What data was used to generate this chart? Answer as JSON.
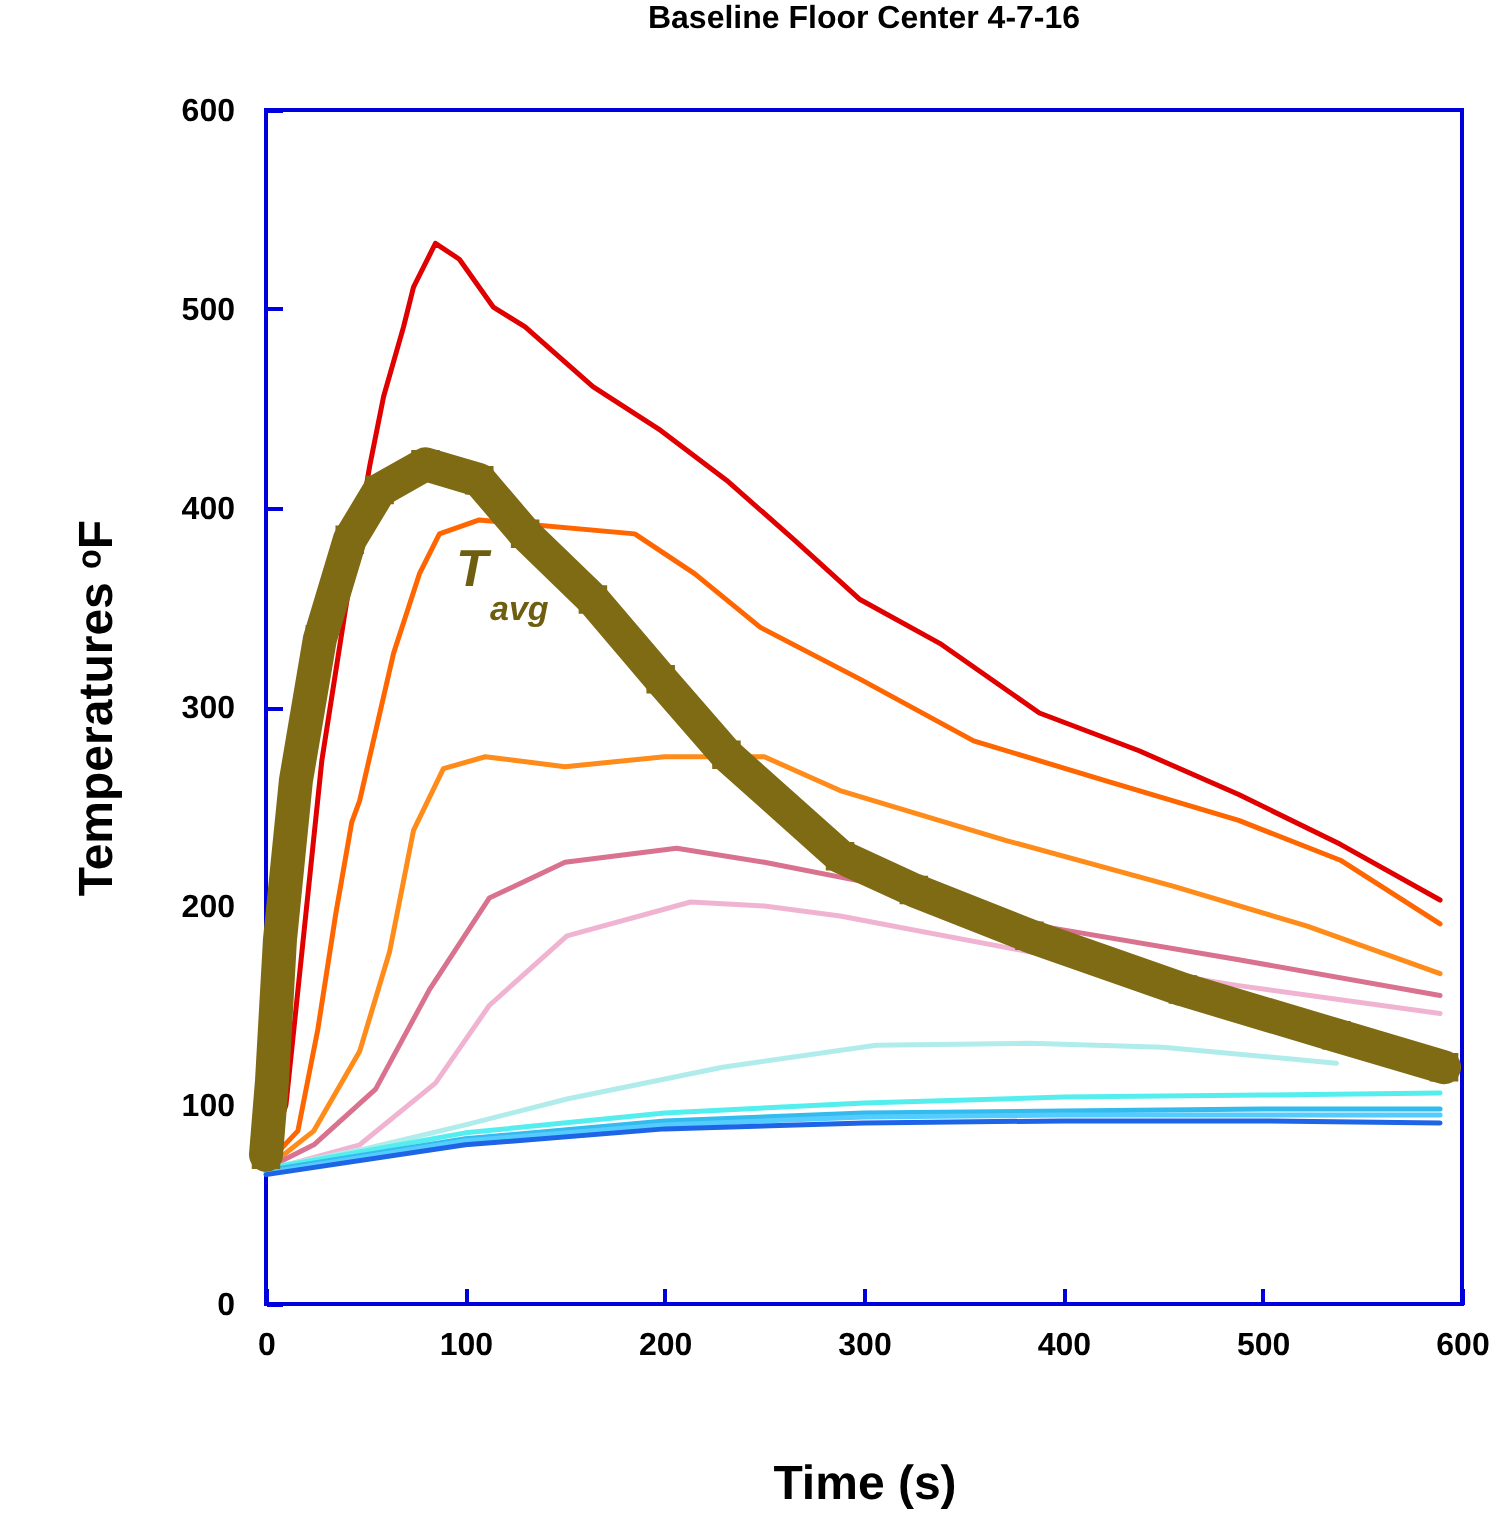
{
  "chart_data": {
    "type": "line",
    "title": "Baseline Floor Center    4-7-16",
    "xlabel": "Time (s)",
    "ylabel": "Temperatures ᵒF",
    "xlim": [
      0,
      600
    ],
    "ylim": [
      0,
      600
    ],
    "xticks": [
      0,
      100,
      200,
      300,
      400,
      500,
      600
    ],
    "yticks": [
      0,
      100,
      200,
      300,
      400,
      500,
      600
    ],
    "grid": false,
    "annotations": [
      "T$_{avg}$"
    ],
    "series": [
      {
        "color": "#e00000",
        "x": [
          0,
          10,
          20,
          28,
          40,
          52,
          59,
          69,
          74,
          85,
          97,
          114,
          130,
          164,
          198,
          231,
          265,
          298,
          338,
          388,
          438,
          488,
          539,
          589
        ],
        "values": [
          70,
          100,
          196,
          273,
          350,
          421,
          456,
          491,
          511,
          533,
          525,
          501,
          491,
          461,
          439,
          414,
          384,
          354,
          332,
          297,
          278,
          256,
          231,
          203
        ]
      },
      {
        "color": "#ff6600",
        "x": [
          0,
          16,
          26,
          35,
          43,
          47,
          64,
          77,
          87,
          107,
          185,
          215,
          248,
          298,
          355,
          421,
          488,
          539,
          589
        ],
        "values": [
          70,
          87,
          138,
          196,
          242,
          253,
          327,
          367,
          387,
          394,
          387,
          367,
          340,
          314,
          283,
          263,
          243,
          223,
          191
        ]
      },
      {
        "color": "#ff8c1a",
        "x": [
          0,
          24,
          47,
          62,
          74,
          89,
          110,
          150,
          200,
          250,
          288,
          371,
          455,
          522,
          589
        ],
        "values": [
          68,
          87,
          127,
          177,
          238,
          269,
          275,
          270,
          275,
          275,
          258,
          233,
          210,
          190,
          166
        ]
      },
      {
        "color": "#d9728f",
        "x": [
          0,
          24,
          55,
          82,
          112,
          150,
          206,
          250,
          306,
          388,
          488,
          589
        ],
        "values": [
          68,
          80,
          108,
          158,
          204,
          222,
          229,
          222,
          211,
          190,
          173,
          155
        ]
      },
      {
        "color": "#f0b4d2",
        "x": [
          0,
          47,
          85,
          112,
          151,
          213,
          250,
          288,
          388,
          488,
          589
        ],
        "values": [
          67,
          80,
          111,
          150,
          185,
          202,
          200,
          195,
          176,
          160,
          146
        ]
      },
      {
        "color": "#b0ecec",
        "x": [
          0,
          50,
          100,
          151,
          229,
          306,
          383,
          450,
          537
        ],
        "values": [
          68,
          78,
          90,
          103,
          119,
          130,
          131,
          129,
          121
        ]
      },
      {
        "color": "#55eeee",
        "x": [
          0,
          100,
          200,
          300,
          400,
          500,
          589
        ],
        "values": [
          68,
          86,
          96,
          101,
          104,
          105,
          106
        ]
      },
      {
        "color": "#33bbee",
        "x": [
          0,
          100,
          200,
          300,
          400,
          500,
          589
        ],
        "values": [
          67,
          83,
          92,
          96,
          97,
          98,
          98
        ]
      },
      {
        "color": "#55ccff",
        "x": [
          0,
          100,
          200,
          300,
          400,
          500,
          589
        ],
        "values": [
          66,
          82,
          90,
          94,
          95,
          95,
          95
        ]
      },
      {
        "color": "#1e64e6",
        "x": [
          0,
          100,
          200,
          300,
          400,
          500,
          589
        ],
        "values": [
          65,
          80,
          88,
          91,
          92,
          92,
          91
        ]
      },
      {
        "color": "#7f6b14",
        "marker": "square",
        "x": [
          0,
          3,
          7,
          15,
          27,
          42,
          57,
          80,
          107,
          130,
          164,
          198,
          231,
          288,
          325,
          383,
          460,
          537,
          591
        ],
        "values": [
          75,
          112,
          183,
          263,
          334,
          384,
          409,
          422,
          414,
          387,
          354,
          314,
          276,
          225,
          208,
          185,
          158,
          135,
          119
        ]
      }
    ]
  }
}
